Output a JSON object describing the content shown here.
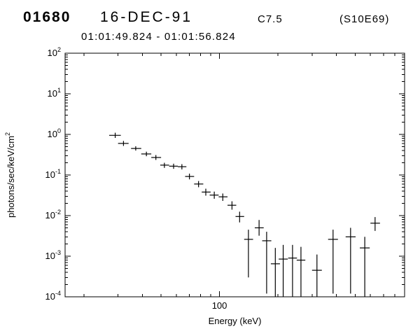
{
  "header": {
    "burst_id": "01680",
    "date": "16-DEC-91",
    "goes_class": "C7.5",
    "location": "(S10E69)",
    "time_range": "01:01:49.824 - 01:01:56.824"
  },
  "chart_data": {
    "type": "scatter",
    "title": "",
    "xlabel": "Energy (keV)",
    "ylabel_base": "photons/sec/keV/cm",
    "ylabel_sup": "2",
    "xscale": "log",
    "yscale": "log",
    "xlim": [
      16,
      900
    ],
    "ylim": [
      0.0001,
      100
    ],
    "grid": false,
    "legend": "none",
    "x_major_tick_values": [
      100
    ],
    "x_major_tick_labels": [
      "100"
    ],
    "y_tick_base": "10",
    "y_tick_exponents": [
      2,
      1,
      0,
      -1,
      -2,
      -3,
      -4
    ],
    "points": [
      {
        "e": 29,
        "elo": 27,
        "ehi": 31,
        "f": 0.95,
        "flo": 0.82,
        "fhi": 1.1
      },
      {
        "e": 32,
        "elo": 30,
        "ehi": 34,
        "f": 0.6,
        "flo": 0.52,
        "fhi": 0.69
      },
      {
        "e": 37,
        "elo": 35,
        "ehi": 39.5,
        "f": 0.45,
        "flo": 0.4,
        "fhi": 0.51
      },
      {
        "e": 42,
        "elo": 39.5,
        "ehi": 44.5,
        "f": 0.33,
        "flo": 0.29,
        "fhi": 0.375
      },
      {
        "e": 47,
        "elo": 44.5,
        "ehi": 50,
        "f": 0.27,
        "flo": 0.235,
        "fhi": 0.31
      },
      {
        "e": 52,
        "elo": 49.5,
        "ehi": 55,
        "f": 0.175,
        "flo": 0.15,
        "fhi": 0.2
      },
      {
        "e": 58,
        "elo": 55,
        "ehi": 61,
        "f": 0.165,
        "flo": 0.142,
        "fhi": 0.19
      },
      {
        "e": 64,
        "elo": 61,
        "ehi": 67.5,
        "f": 0.16,
        "flo": 0.137,
        "fhi": 0.185
      },
      {
        "e": 70,
        "elo": 66.5,
        "ehi": 74,
        "f": 0.092,
        "flo": 0.078,
        "fhi": 0.108
      },
      {
        "e": 78,
        "elo": 74,
        "ehi": 82.5,
        "f": 0.06,
        "flo": 0.05,
        "fhi": 0.071
      },
      {
        "e": 85,
        "elo": 81,
        "ehi": 90,
        "f": 0.038,
        "flo": 0.031,
        "fhi": 0.046
      },
      {
        "e": 94,
        "elo": 89,
        "ehi": 99,
        "f": 0.032,
        "flo": 0.026,
        "fhi": 0.039
      },
      {
        "e": 104,
        "elo": 99,
        "ehi": 110,
        "f": 0.029,
        "flo": 0.023,
        "fhi": 0.035
      },
      {
        "e": 116,
        "elo": 110,
        "ehi": 122,
        "f": 0.018,
        "flo": 0.014,
        "fhi": 0.0225
      },
      {
        "e": 127,
        "elo": 121,
        "ehi": 134,
        "f": 0.0095,
        "flo": 0.0068,
        "fhi": 0.0125
      },
      {
        "e": 141,
        "elo": 134,
        "ehi": 149,
        "f": 0.0026,
        "flo": 0.0003,
        "fhi": 0.0045
      },
      {
        "e": 160,
        "elo": 152,
        "ehi": 169,
        "f": 0.005,
        "flo": 0.0032,
        "fhi": 0.0078
      },
      {
        "e": 175,
        "elo": 166,
        "ehi": 185,
        "f": 0.0024,
        "flo": 0.00012,
        "fhi": 0.004
      },
      {
        "e": 194,
        "elo": 184,
        "ehi": 205,
        "f": 0.00065,
        "flo": 8e-05,
        "fhi": 0.0016
      },
      {
        "e": 213,
        "elo": 202,
        "ehi": 225,
        "f": 0.00085,
        "flo": 8e-05,
        "fhi": 0.0019
      },
      {
        "e": 238,
        "elo": 226,
        "ehi": 251,
        "f": 0.0009,
        "flo": 8e-05,
        "fhi": 0.0019
      },
      {
        "e": 263,
        "elo": 250,
        "ehi": 277,
        "f": 0.0008,
        "flo": 8e-05,
        "fhi": 0.0017
      },
      {
        "e": 318,
        "elo": 300,
        "ehi": 337,
        "f": 0.00045,
        "flo": 8e-05,
        "fhi": 0.0011
      },
      {
        "e": 385,
        "elo": 363,
        "ehi": 408,
        "f": 0.0026,
        "flo": 0.00012,
        "fhi": 0.0045
      },
      {
        "e": 474,
        "elo": 447,
        "ehi": 503,
        "f": 0.003,
        "flo": 0.00012,
        "fhi": 0.005
      },
      {
        "e": 561,
        "elo": 529,
        "ehi": 595,
        "f": 0.0016,
        "flo": 8e-05,
        "fhi": 0.003
      },
      {
        "e": 634,
        "elo": 600,
        "ehi": 672,
        "f": 0.0065,
        "flo": 0.0042,
        "fhi": 0.0092
      }
    ]
  }
}
